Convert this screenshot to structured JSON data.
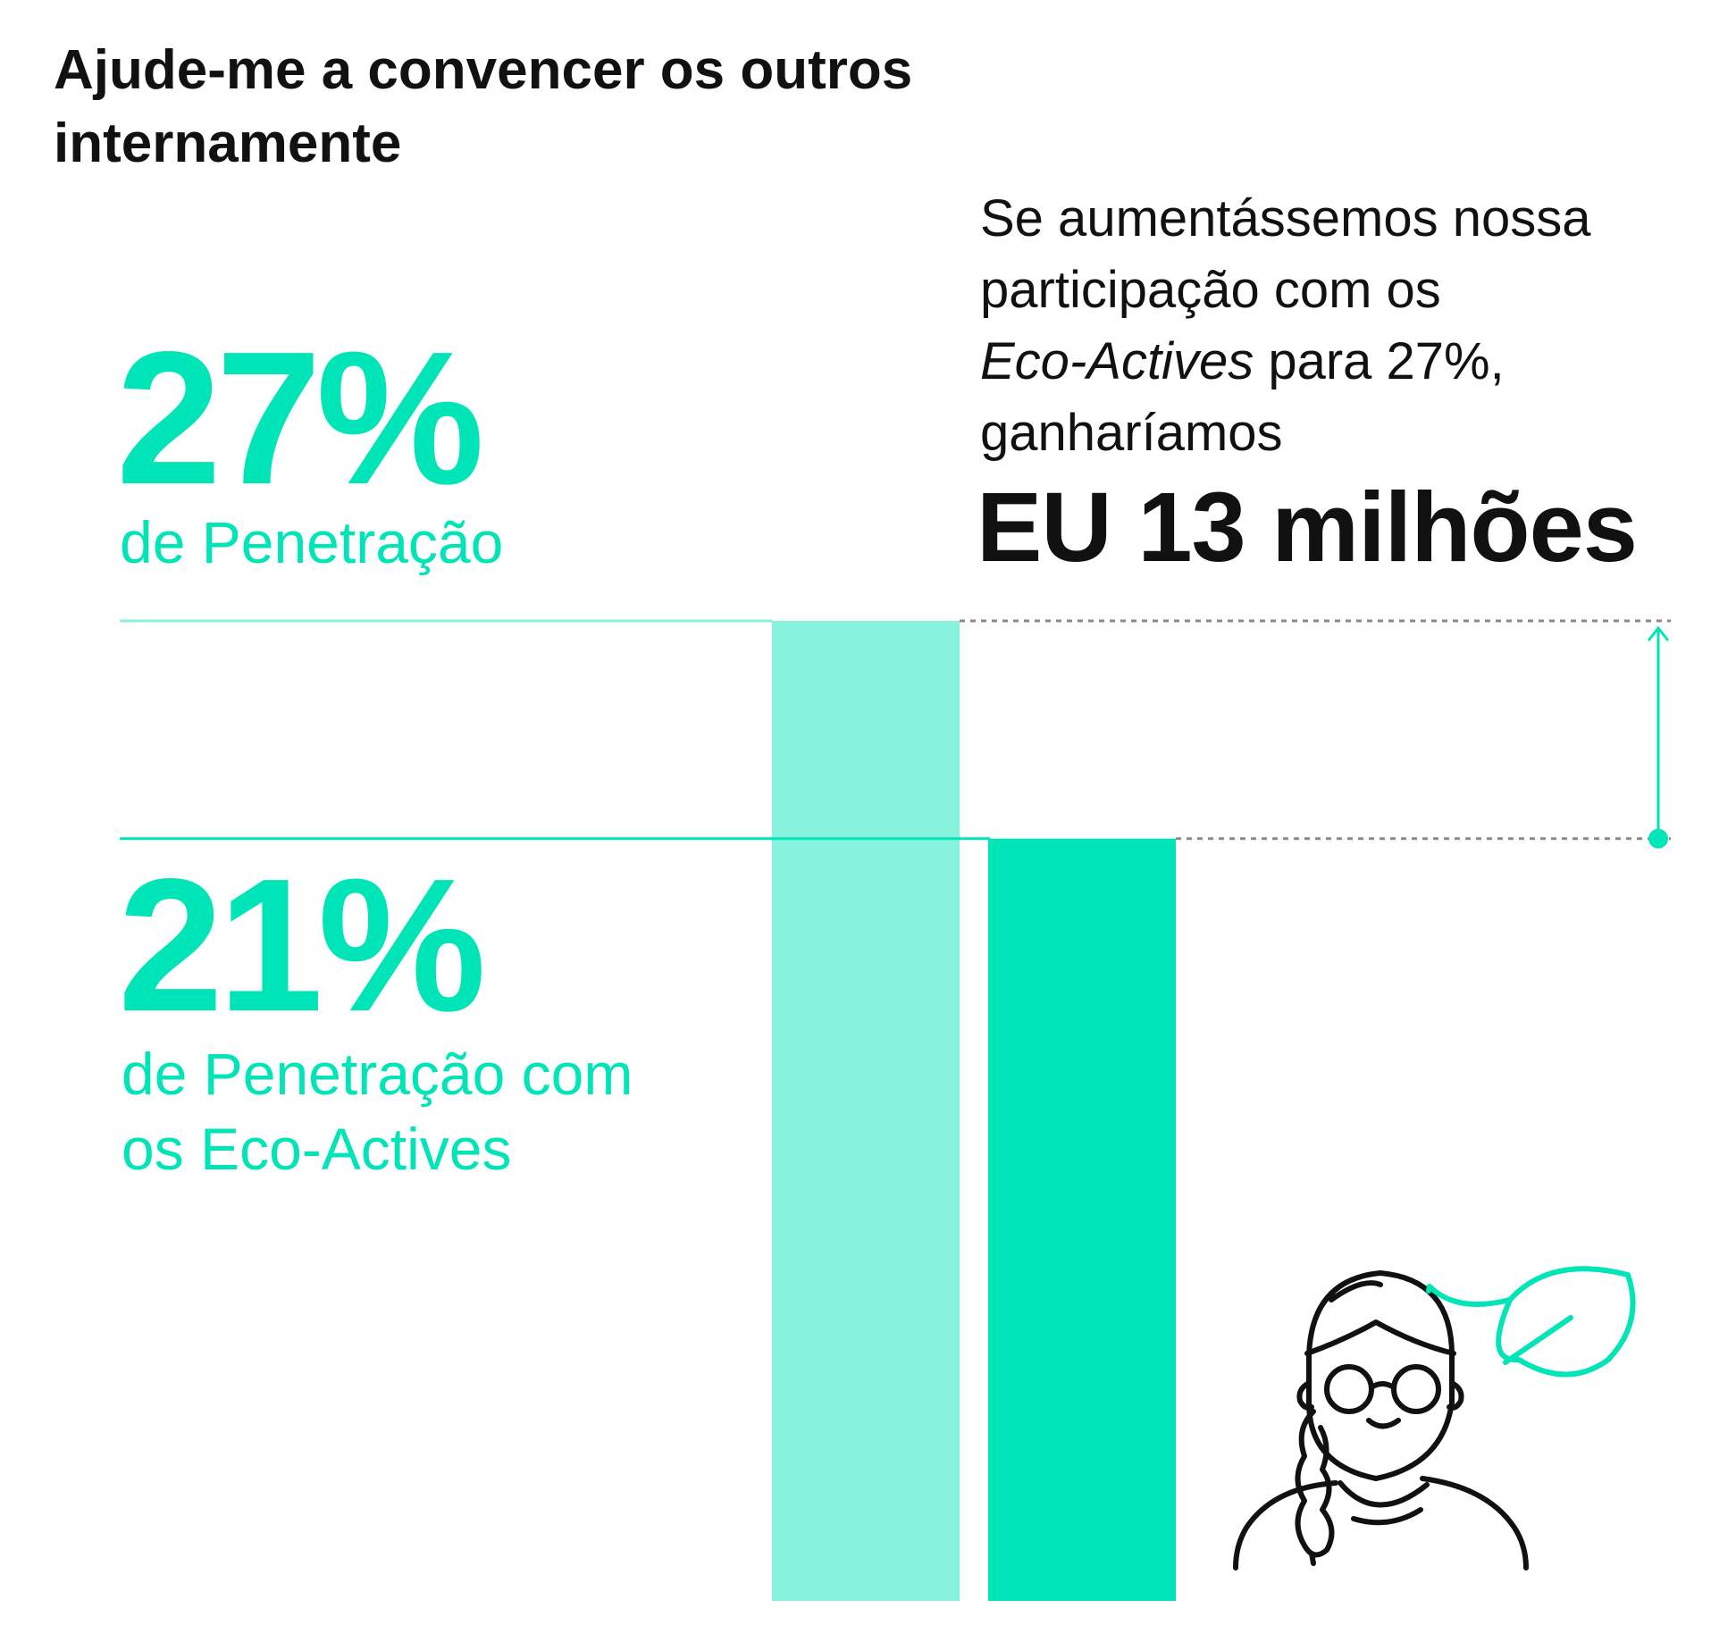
{
  "title": "Ajude-me a convencer os outros internamente",
  "colors": {
    "accent": "#00E5B8",
    "accent_light": "#86F2DC",
    "text": "#111111",
    "dotted": "#8A8A8A"
  },
  "top_stat": {
    "value": "27%",
    "label": "de Penetração"
  },
  "bottom_stat": {
    "value": "21%",
    "label": "de Penetração com os Eco-Actives"
  },
  "callout": {
    "line1": "Se aumentássemos nossa",
    "line2": "participação com os",
    "line3_italic": "Eco-Actives",
    "line3_rest": " para 27%,",
    "line4": "ganharíamos",
    "amount": "EU 13 milhões"
  },
  "icons": {
    "person": "person-with-glasses-braid-icon",
    "leaf": "leaf-icon",
    "arrow": "arrow-up-icon"
  },
  "chart_data": {
    "type": "bar",
    "categories": [
      "Penetração",
      "Penetração com os Eco-Actives"
    ],
    "series": [
      {
        "values": [
          27,
          21
        ]
      }
    ],
    "unit": "%"
  }
}
